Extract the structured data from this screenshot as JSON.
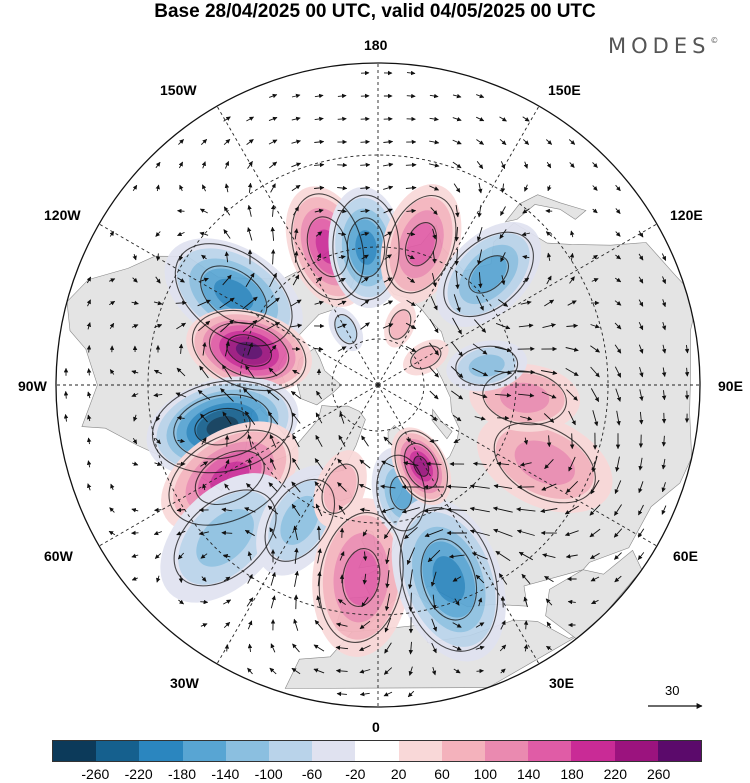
{
  "title": "Base 28/04/2025 00 UTC, valid 04/05/2025 00 UTC",
  "logo": "MODES",
  "longitude_labels": {
    "top": "180",
    "bottom": "0",
    "left": "90W",
    "right": "90E",
    "upper_left_150": "150W",
    "upper_right_150": "150E",
    "upper_left_120": "120W",
    "upper_right_120": "120E",
    "lower_left_60": "60W",
    "lower_right_60": "60E",
    "lower_left_30": "30W",
    "lower_right_30": "30E"
  },
  "reference_vector": {
    "label": "30"
  },
  "colorbar": {
    "colors": [
      "#0c3a5a",
      "#15608e",
      "#2b86bf",
      "#58a5d3",
      "#8bbfe0",
      "#b9d3ea",
      "#e0e2f0",
      "#ffffff",
      "#f9d8d8",
      "#f4b2bc",
      "#ea8ab0",
      "#e05ca6",
      "#c92b96",
      "#9b137e",
      "#5b0a6b"
    ],
    "tick_labels": [
      "-260",
      "-220",
      "-180",
      "-140",
      "-100",
      "-60",
      "-20",
      "20",
      "60",
      "100",
      "140",
      "180",
      "220",
      "260"
    ]
  },
  "map_colors": {
    "land": "#e4e4e4",
    "ocean": "#ffffff",
    "grid": "#222222",
    "contour": "#111111"
  },
  "anomaly_centers": [
    {
      "lon": -160,
      "lat": 58,
      "value": 180
    },
    {
      "lon": -175,
      "lat": 60,
      "value": -200
    },
    {
      "lon": 163,
      "lat": 58,
      "value": 170
    },
    {
      "lon": 135,
      "lat": 56,
      "value": -150
    },
    {
      "lon": -122,
      "lat": 53,
      "value": -210
    },
    {
      "lon": -105,
      "lat": 61,
      "value": 260
    },
    {
      "lon": -75,
      "lat": 55,
      "value": -260
    },
    {
      "lon": -58,
      "lat": 52,
      "value": 190
    },
    {
      "lon": -45,
      "lat": 43,
      "value": -130
    },
    {
      "lon": -30,
      "lat": 56,
      "value": -120
    },
    {
      "lon": -20,
      "lat": 66,
      "value": 90
    },
    {
      "lon": -5,
      "lat": 48,
      "value": 160
    },
    {
      "lon": 12,
      "lat": 66,
      "value": -170
    },
    {
      "lon": 20,
      "lat": 45,
      "value": -180
    },
    {
      "lon": 28,
      "lat": 70,
      "value": 220
    },
    {
      "lon": 65,
      "lat": 50,
      "value": 130
    },
    {
      "lon": 85,
      "lat": 58,
      "value": 110
    },
    {
      "lon": 100,
      "lat": 66,
      "value": -100
    },
    {
      "lon": 120,
      "lat": 78,
      "value": 80
    },
    {
      "lon": -150,
      "lat": 76,
      "value": -60
    },
    {
      "lon": 160,
      "lat": 76,
      "value": 60
    }
  ]
}
